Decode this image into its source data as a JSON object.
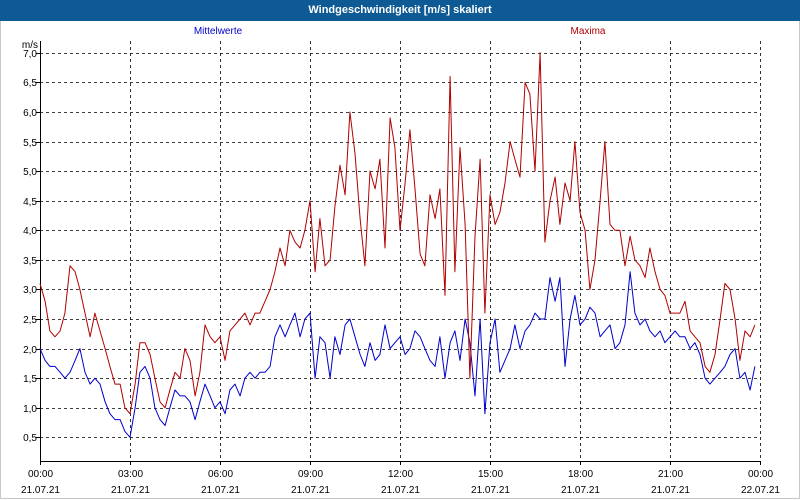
{
  "title": "Windgeschwindigkeit [m/s] skaliert",
  "chart_data": {
    "type": "line",
    "title": "Windgeschwindigkeit [m/s] skaliert",
    "ylabel": "m/s",
    "ylim": [
      0.1,
      7.2
    ],
    "yticks": [
      0.5,
      1.0,
      1.5,
      2.0,
      2.5,
      3.0,
      3.5,
      4.0,
      4.5,
      5.0,
      5.5,
      6.0,
      6.5,
      7.0
    ],
    "yticklabels": [
      "0,5",
      "1,0",
      "1,5",
      "2,0",
      "2,5",
      "3,0",
      "3,5",
      "4,0",
      "4,5",
      "5,0",
      "5,5",
      "6,0",
      "6,5",
      "7,0"
    ],
    "xlim": [
      0,
      24
    ],
    "xticks": [
      0,
      3,
      6,
      9,
      12,
      15,
      18,
      21,
      24
    ],
    "xticklabels_time": [
      "00:00",
      "03:00",
      "06:00",
      "09:00",
      "12:00",
      "15:00",
      "18:00",
      "21:00",
      "00:00"
    ],
    "xticklabels_date": [
      "21.07.21",
      "21.07.21",
      "21.07.21",
      "21.07.21",
      "21.07.21",
      "21.07.21",
      "21.07.21",
      "21.07.21",
      "22.07.21"
    ],
    "grid": true,
    "legend_placement": "top",
    "series": [
      {
        "name": "Mittelwerte",
        "color": "#0000cc",
        "x": [
          0.0,
          0.17,
          0.33,
          0.5,
          0.67,
          0.83,
          1.0,
          1.17,
          1.33,
          1.5,
          1.67,
          1.83,
          2.0,
          2.17,
          2.33,
          2.5,
          2.67,
          2.83,
          3.0,
          3.17,
          3.33,
          3.5,
          3.67,
          3.83,
          4.0,
          4.17,
          4.33,
          4.5,
          4.67,
          4.83,
          5.0,
          5.17,
          5.33,
          5.5,
          5.67,
          5.83,
          6.0,
          6.17,
          6.33,
          6.5,
          6.67,
          6.83,
          7.0,
          7.17,
          7.33,
          7.5,
          7.67,
          7.83,
          8.0,
          8.17,
          8.33,
          8.5,
          8.67,
          8.83,
          9.0,
          9.17,
          9.33,
          9.5,
          9.67,
          9.83,
          10.0,
          10.17,
          10.33,
          10.5,
          10.67,
          10.83,
          11.0,
          11.17,
          11.33,
          11.5,
          11.67,
          11.83,
          12.0,
          12.17,
          12.33,
          12.5,
          12.67,
          12.83,
          13.0,
          13.17,
          13.33,
          13.5,
          13.67,
          13.83,
          14.0,
          14.17,
          14.33,
          14.5,
          14.67,
          14.83,
          15.0,
          15.17,
          15.33,
          15.5,
          15.67,
          15.83,
          16.0,
          16.17,
          16.33,
          16.5,
          16.67,
          16.83,
          17.0,
          17.17,
          17.33,
          17.5,
          17.67,
          17.83,
          18.0,
          18.17,
          18.33,
          18.5,
          18.67,
          18.83,
          19.0,
          19.17,
          19.33,
          19.5,
          19.67,
          19.83,
          20.0,
          20.17,
          20.33,
          20.5,
          20.67,
          20.83,
          21.0,
          21.17,
          21.33,
          21.5,
          21.67,
          21.83,
          22.0,
          22.17,
          22.33,
          22.5,
          22.67,
          22.83,
          23.0,
          23.17,
          23.33,
          23.5,
          23.67,
          23.83
        ],
        "values": [
          2.0,
          1.8,
          1.7,
          1.7,
          1.6,
          1.5,
          1.6,
          1.8,
          2.0,
          1.6,
          1.4,
          1.5,
          1.4,
          1.1,
          0.9,
          0.8,
          0.8,
          0.6,
          0.5,
          1.0,
          1.6,
          1.7,
          1.5,
          1.0,
          0.8,
          0.7,
          1.0,
          1.3,
          1.2,
          1.2,
          1.1,
          0.8,
          1.1,
          1.4,
          1.2,
          1.0,
          1.1,
          0.9,
          1.3,
          1.4,
          1.2,
          1.5,
          1.6,
          1.5,
          1.6,
          1.6,
          1.7,
          2.2,
          2.4,
          2.2,
          2.4,
          2.6,
          2.2,
          2.5,
          2.6,
          1.5,
          2.2,
          2.1,
          1.5,
          2.2,
          1.9,
          2.4,
          2.5,
          2.2,
          1.9,
          1.7,
          2.1,
          1.8,
          1.9,
          2.4,
          2.0,
          2.1,
          2.2,
          1.9,
          2.0,
          2.3,
          2.2,
          2.0,
          1.8,
          1.7,
          2.2,
          1.5,
          2.1,
          2.3,
          1.8,
          2.5,
          2.1,
          1.2,
          2.5,
          0.9,
          2.1,
          2.5,
          1.6,
          1.8,
          2.0,
          2.4,
          2.0,
          2.3,
          2.4,
          2.6,
          2.5,
          2.5,
          3.2,
          2.8,
          3.2,
          1.7,
          2.5,
          2.9,
          2.4,
          2.5,
          2.7,
          2.6,
          2.2,
          2.3,
          2.4,
          2.0,
          2.1,
          2.4,
          3.3,
          2.6,
          2.4,
          2.5,
          2.3,
          2.2,
          2.3,
          2.1,
          2.2,
          2.3,
          2.2,
          2.2,
          2.0,
          2.1,
          1.9,
          1.5,
          1.4,
          1.5,
          1.6,
          1.7,
          1.9,
          2.0,
          1.5,
          1.6,
          1.3,
          1.7
        ]
      },
      {
        "name": "Maxima",
        "color": "#b00000",
        "x": [
          0.0,
          0.17,
          0.33,
          0.5,
          0.67,
          0.83,
          1.0,
          1.17,
          1.33,
          1.5,
          1.67,
          1.83,
          2.0,
          2.17,
          2.33,
          2.5,
          2.67,
          2.83,
          3.0,
          3.17,
          3.33,
          3.5,
          3.67,
          3.83,
          4.0,
          4.17,
          4.33,
          4.5,
          4.67,
          4.83,
          5.0,
          5.17,
          5.33,
          5.5,
          5.67,
          5.83,
          6.0,
          6.17,
          6.33,
          6.5,
          6.67,
          6.83,
          7.0,
          7.17,
          7.33,
          7.5,
          7.67,
          7.83,
          8.0,
          8.17,
          8.33,
          8.5,
          8.67,
          8.83,
          9.0,
          9.17,
          9.33,
          9.5,
          9.67,
          9.83,
          10.0,
          10.17,
          10.33,
          10.5,
          10.67,
          10.83,
          11.0,
          11.17,
          11.33,
          11.5,
          11.67,
          11.83,
          12.0,
          12.17,
          12.33,
          12.5,
          12.67,
          12.83,
          13.0,
          13.17,
          13.33,
          13.5,
          13.67,
          13.83,
          14.0,
          14.17,
          14.33,
          14.5,
          14.67,
          14.83,
          15.0,
          15.17,
          15.33,
          15.5,
          15.67,
          15.83,
          16.0,
          16.17,
          16.33,
          16.5,
          16.67,
          16.83,
          17.0,
          17.17,
          17.33,
          17.5,
          17.67,
          17.83,
          18.0,
          18.17,
          18.33,
          18.5,
          18.67,
          18.83,
          19.0,
          19.17,
          19.33,
          19.5,
          19.67,
          19.83,
          20.0,
          20.17,
          20.33,
          20.5,
          20.67,
          20.83,
          21.0,
          21.17,
          21.33,
          21.5,
          21.67,
          21.83,
          22.0,
          22.17,
          22.33,
          22.5,
          22.67,
          22.83,
          23.0,
          23.17,
          23.33,
          23.5,
          23.67,
          23.83
        ],
        "values": [
          3.1,
          2.8,
          2.3,
          2.2,
          2.3,
          2.6,
          3.4,
          3.3,
          3.0,
          2.6,
          2.2,
          2.6,
          2.3,
          2.0,
          1.7,
          1.4,
          1.4,
          1.0,
          0.9,
          1.4,
          2.1,
          2.1,
          1.9,
          1.5,
          1.1,
          1.0,
          1.3,
          1.6,
          1.5,
          2.0,
          1.8,
          1.2,
          1.6,
          2.4,
          2.2,
          2.1,
          2.2,
          1.8,
          2.3,
          2.4,
          2.5,
          2.6,
          2.4,
          2.6,
          2.6,
          2.8,
          3.0,
          3.3,
          3.7,
          3.4,
          4.0,
          3.8,
          3.7,
          4.0,
          4.5,
          3.3,
          4.2,
          3.4,
          3.5,
          4.4,
          5.1,
          4.6,
          6.0,
          5.3,
          4.2,
          3.4,
          5.0,
          4.7,
          5.2,
          3.7,
          5.9,
          5.4,
          4.0,
          4.8,
          5.7,
          4.7,
          3.6,
          3.4,
          4.6,
          4.2,
          4.7,
          2.9,
          6.6,
          3.3,
          5.4,
          4.1,
          1.5,
          3.9,
          5.2,
          2.6,
          4.6,
          4.1,
          4.3,
          4.8,
          5.5,
          5.2,
          4.9,
          6.5,
          6.3,
          5.0,
          7.0,
          3.8,
          4.5,
          4.9,
          4.1,
          4.8,
          4.5,
          5.5,
          4.3,
          4.0,
          3.0,
          3.5,
          4.5,
          5.5,
          4.1,
          4.0,
          4.0,
          3.4,
          3.9,
          3.5,
          3.4,
          3.2,
          3.7,
          3.3,
          3.0,
          2.9,
          2.6,
          2.6,
          2.6,
          2.8,
          2.3,
          2.2,
          2.1,
          1.7,
          1.6,
          1.9,
          2.5,
          3.1,
          3.0,
          2.5,
          1.8,
          2.3,
          2.2,
          2.4
        ]
      }
    ]
  }
}
